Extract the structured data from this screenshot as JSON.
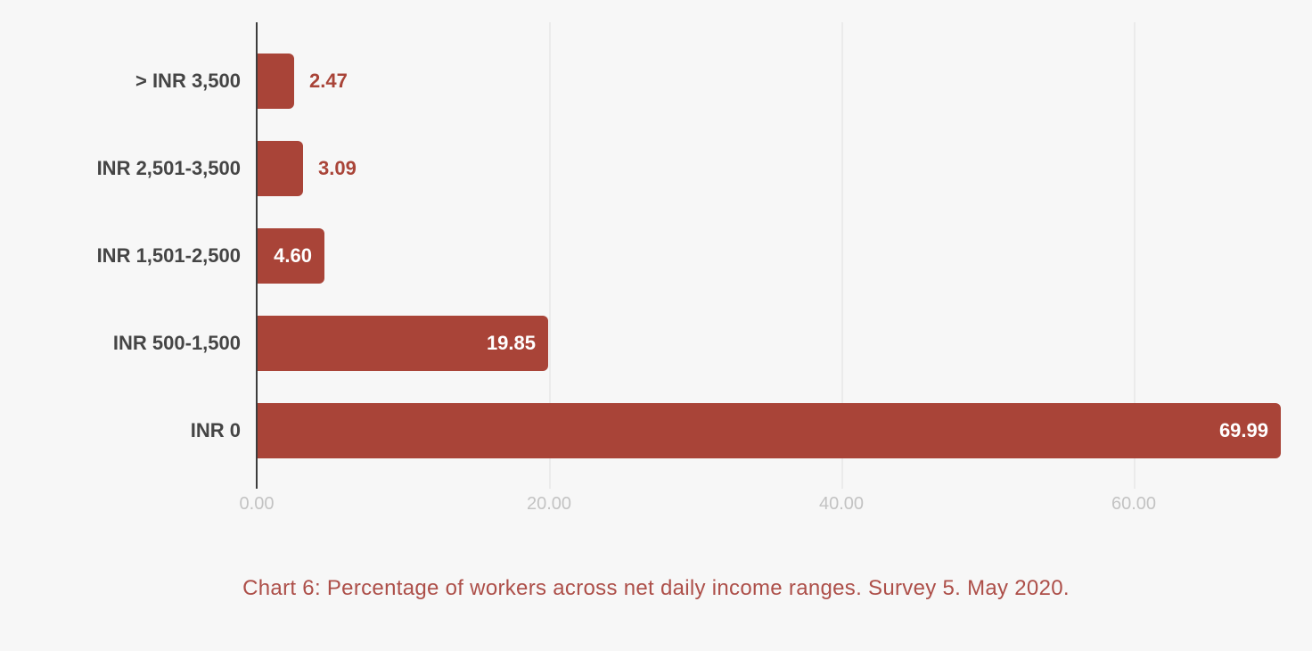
{
  "chart_data": {
    "type": "bar",
    "orientation": "horizontal",
    "categories": [
      "> INR 3,500",
      "INR 2,501-3,500",
      "INR 1,501-2,500",
      "INR 500-1,500",
      "INR 0"
    ],
    "values": [
      2.47,
      3.09,
      4.6,
      19.85,
      69.99
    ],
    "value_labels": [
      "2.47",
      "3.09",
      "4.60",
      "19.85",
      "69.99"
    ],
    "x_tick_labels": [
      "0.00",
      "20.00",
      "40.00",
      "60.00"
    ],
    "x_tick_values": [
      0,
      20,
      40,
      60
    ],
    "xlim": [
      0,
      72.2
    ],
    "grid": "vertical-only",
    "legend": "none",
    "title": "",
    "caption": "Chart 6: Percentage of workers across net daily income ranges. Survey 5. May 2020."
  },
  "colors": {
    "background": "#f7f7f7",
    "bar": "#a94438",
    "axis_line": "#3d3d3d",
    "gridline": "#ebebeb",
    "category_label": "#454545",
    "value_label_inside": "#ffffff",
    "value_label_outside": "#a94438",
    "tick_label": "#c3c3c3",
    "caption": "#ad4f49"
  }
}
